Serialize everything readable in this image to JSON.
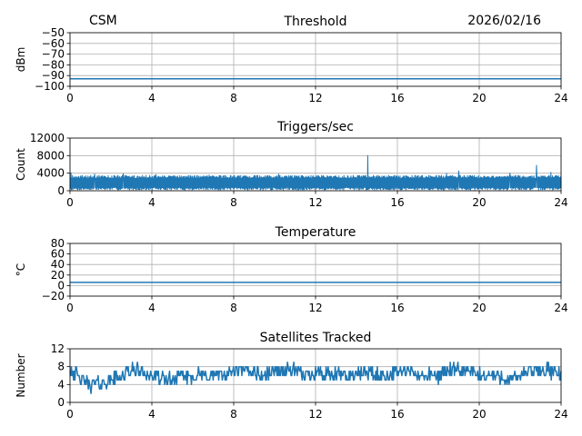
{
  "header": {
    "left": "CSM",
    "right": "2026/02/16"
  },
  "chart_data": [
    {
      "type": "line",
      "title": "Threshold",
      "ylabel": "dBm",
      "xlim": [
        0,
        24
      ],
      "ylim": [
        -100,
        -50
      ],
      "xticks": [
        0,
        4,
        8,
        12,
        16,
        20,
        24
      ],
      "yticks": [
        -100,
        -90,
        -80,
        -70,
        -60,
        -50
      ],
      "ytick_labels": [
        "−100",
        "−90",
        "−80",
        "−70",
        "−60",
        "−50"
      ],
      "grid": true,
      "series": [
        {
          "color": "#1f77b4",
          "x": [
            0,
            24
          ],
          "y": [
            -93,
            -93
          ]
        }
      ]
    },
    {
      "type": "line",
      "title": "Triggers/sec",
      "ylabel": "Count",
      "xlim": [
        0,
        24
      ],
      "ylim": [
        0,
        12000
      ],
      "xticks": [
        0,
        4,
        8,
        12,
        16,
        20,
        24
      ],
      "yticks": [
        0,
        4000,
        8000,
        12000
      ],
      "ytick_labels": [
        "0",
        "4000",
        "8000",
        "12000"
      ],
      "grid": true,
      "baseline": 3000,
      "noise_band": [
        200,
        3500
      ],
      "spikes": [
        {
          "x": 0.05,
          "y": 4100
        },
        {
          "x": 1.2,
          "y": 3800
        },
        {
          "x": 2.6,
          "y": 3900
        },
        {
          "x": 4.2,
          "y": 3700
        },
        {
          "x": 6.8,
          "y": 3600
        },
        {
          "x": 10.2,
          "y": 3800
        },
        {
          "x": 14.55,
          "y": 8000
        },
        {
          "x": 18.4,
          "y": 4000
        },
        {
          "x": 19.0,
          "y": 4500
        },
        {
          "x": 21.5,
          "y": 4000
        },
        {
          "x": 22.8,
          "y": 5800
        },
        {
          "x": 23.5,
          "y": 4200
        }
      ],
      "series": [
        {
          "color": "#1f77b4"
        }
      ]
    },
    {
      "type": "line",
      "title": "Temperature",
      "ylabel": "°C",
      "xlim": [
        0,
        24
      ],
      "ylim": [
        -20,
        80
      ],
      "xticks": [
        0,
        4,
        8,
        12,
        16,
        20,
        24
      ],
      "yticks": [
        -20,
        0,
        20,
        40,
        60,
        80
      ],
      "ytick_labels": [
        "−20",
        "0",
        "20",
        "40",
        "60",
        "80"
      ],
      "grid": true,
      "series": [
        {
          "color": "#1f77b4",
          "x": [
            0,
            24
          ],
          "y": [
            6,
            6
          ]
        }
      ]
    },
    {
      "type": "line",
      "title": "Satellites Tracked",
      "ylabel": "Number",
      "xlim": [
        0,
        24
      ],
      "ylim": [
        0,
        12
      ],
      "xticks": [
        0,
        4,
        8,
        12,
        16,
        20,
        24
      ],
      "yticks": [
        0,
        4,
        8,
        12
      ],
      "ytick_labels": [
        "0",
        "4",
        "8",
        "12"
      ],
      "grid": true,
      "series": [
        {
          "color": "#1f77b4"
        }
      ],
      "pattern": {
        "x": [
          0,
          0.5,
          1.0,
          1.5,
          2.0,
          2.5,
          3.0,
          3.5,
          4.0,
          4.5,
          5.0,
          5.5,
          6.0,
          6.5,
          7.0,
          7.5,
          8.0,
          8.5,
          9.0,
          9.5,
          10.0,
          10.5,
          11.0,
          11.5,
          12.0,
          12.5,
          13.0,
          13.5,
          14.0,
          14.5,
          15.0,
          15.5,
          16.0,
          16.5,
          17.0,
          17.5,
          18.0,
          18.5,
          19.0,
          19.5,
          20.0,
          20.5,
          21.0,
          21.5,
          22.0,
          22.5,
          23.0,
          23.5,
          24.0
        ],
        "y": [
          8,
          5,
          4,
          4,
          5,
          6,
          7,
          7,
          6,
          5,
          5,
          6,
          6,
          6,
          6,
          6,
          7,
          7,
          7,
          6,
          7,
          7,
          7,
          6,
          7,
          6,
          6,
          6,
          6,
          7,
          6,
          6,
          7,
          7,
          6,
          6,
          6,
          7,
          7,
          7,
          6,
          6,
          6,
          5,
          6,
          7,
          7,
          7,
          6
        ]
      }
    }
  ]
}
